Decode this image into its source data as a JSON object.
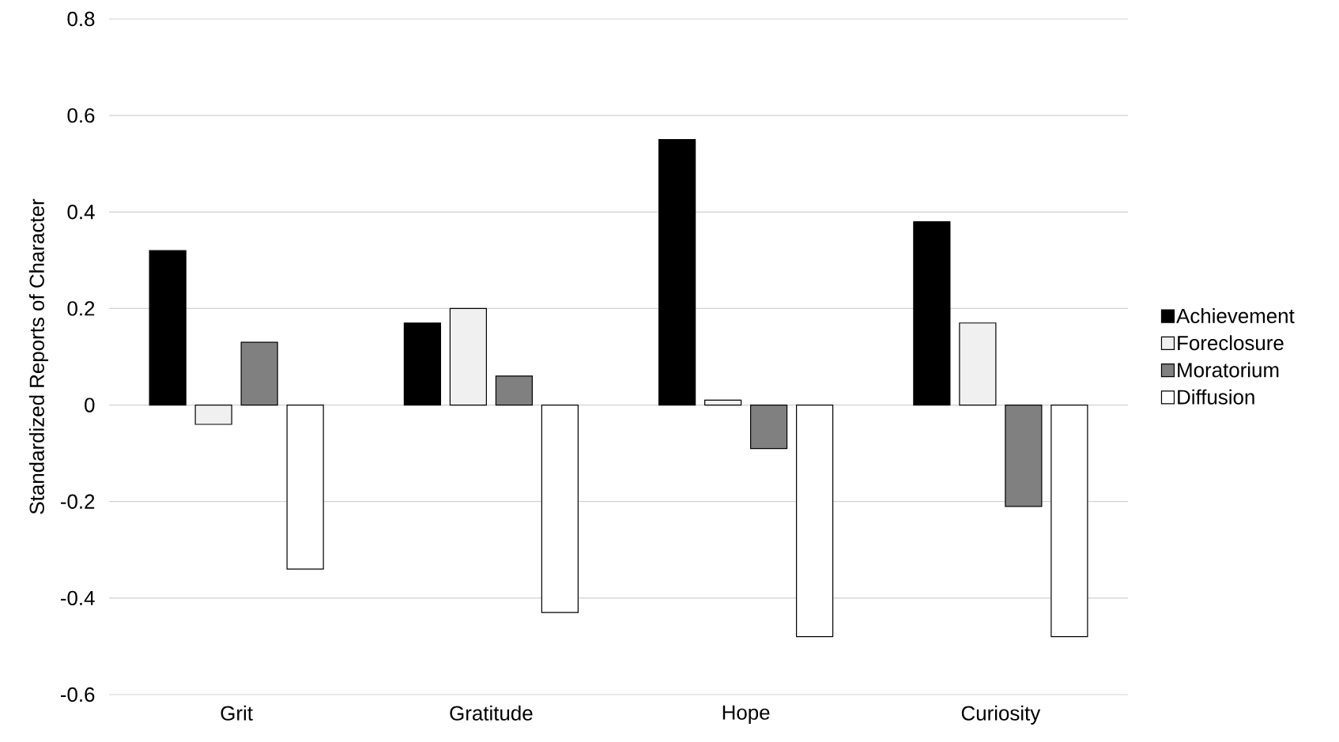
{
  "chart_data": {
    "type": "bar",
    "ylabel": "Standardized Reports of Character",
    "categories": [
      "Grit",
      "Gratitude",
      "Hope",
      "Curiosity"
    ],
    "series": [
      {
        "name": "Achievement",
        "color": "#000000",
        "values": [
          0.32,
          0.17,
          0.55,
          0.38
        ]
      },
      {
        "name": "Foreclosure",
        "color": "#f0f0f0",
        "values": [
          -0.04,
          0.2,
          0.01,
          0.17
        ]
      },
      {
        "name": "Moratorium",
        "color": "#808080",
        "values": [
          0.13,
          0.06,
          -0.09,
          -0.21
        ]
      },
      {
        "name": "Diffusion",
        "color": "#ffffff",
        "values": [
          -0.34,
          -0.43,
          -0.48,
          -0.48
        ]
      }
    ],
    "ylim": [
      -0.6,
      0.8
    ],
    "yticks": [
      -0.6,
      -0.4,
      -0.2,
      0,
      0.2,
      0.4,
      0.6,
      0.8
    ],
    "grid": "y",
    "legend": "right"
  }
}
